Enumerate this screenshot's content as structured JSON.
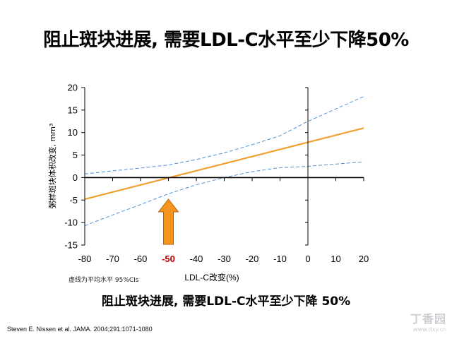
{
  "slide": {
    "title": "阻止斑块进展, 需要LDL-C水平至少下降50%",
    "conclusion": "阻止斑块进展, 需要LDL-C水平至少下降 50%",
    "ci_note": "虚线为平均水平 95%CIs",
    "citation": "Steven E. Nissen et al. JAMA. 2004;291:1071-1080",
    "watermark": "丁香园",
    "watermark_sub": "www.dxy.cn"
  },
  "chart_data": {
    "type": "line",
    "title": "",
    "xlabel": "LDL-C改变(%)",
    "ylabel": "粥样斑块体积改变, mm³",
    "xlim": [
      -80,
      20
    ],
    "ylim": [
      -15,
      20
    ],
    "x_ticks": [
      -80,
      -70,
      -60,
      -50,
      -40,
      -30,
      -20,
      -10,
      0,
      10,
      20
    ],
    "y_ticks": [
      20,
      15,
      10,
      5,
      0,
      -5,
      -10,
      -15
    ],
    "highlight_x": -50,
    "highlight_color": "#c00000",
    "arrow_color": "#f7941d",
    "grid": false,
    "series": [
      {
        "role": "mean",
        "color": "#f0a030",
        "style": "solid",
        "x": [
          -80,
          20
        ],
        "y": [
          -4.8,
          11.0
        ]
      },
      {
        "role": "upper-ci",
        "color": "#4a90d9",
        "style": "dashed",
        "x": [
          -80,
          -70,
          -60,
          -50,
          -40,
          -30,
          -20,
          -10,
          0,
          20
        ],
        "y": [
          0.8,
          1.5,
          2.1,
          2.8,
          4.0,
          5.5,
          7.3,
          9.3,
          12.5,
          18.0
        ]
      },
      {
        "role": "lower-ci",
        "color": "#4a90d9",
        "style": "dashed",
        "x": [
          -80,
          -70,
          -60,
          -50,
          -40,
          -30,
          -20,
          -10,
          0,
          20
        ],
        "y": [
          -10.7,
          -8.3,
          -6.0,
          -3.6,
          -1.6,
          0.0,
          1.3,
          2.2,
          2.5,
          3.5
        ]
      }
    ]
  }
}
